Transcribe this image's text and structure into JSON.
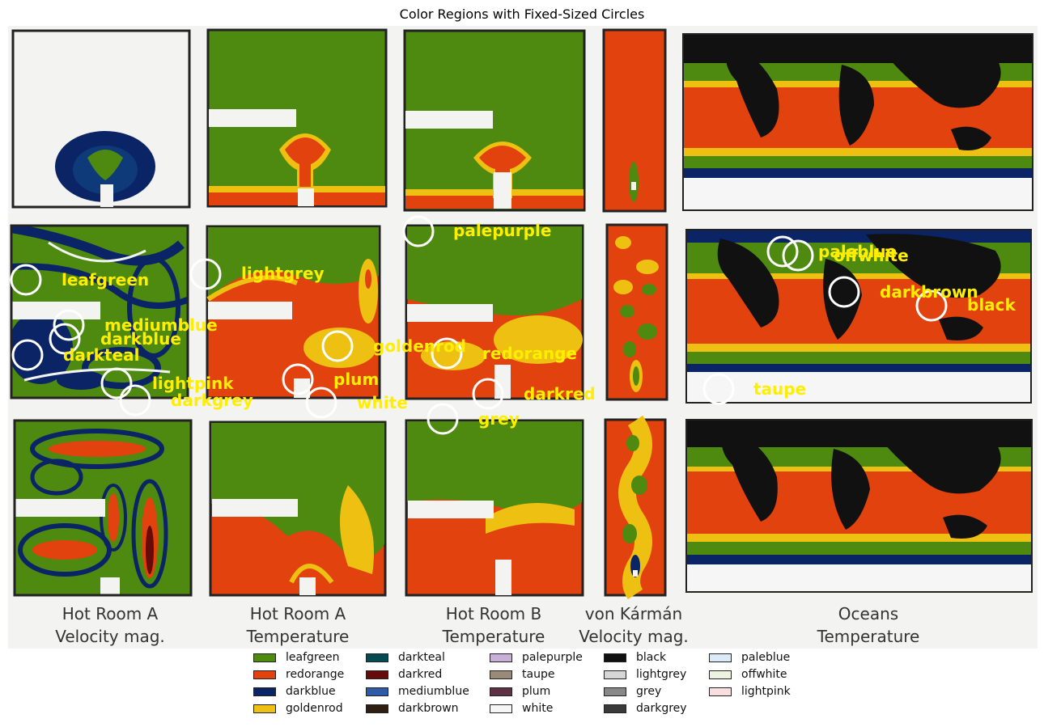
{
  "title": "Color Regions with Fixed-Sized Circles",
  "captions": [
    [
      "Hot Room A",
      "Velocity mag."
    ],
    [
      "Hot Room A",
      "Temperature"
    ],
    [
      "Hot Room B",
      "Temperature"
    ],
    [
      "von Kármán",
      "Velocity mag."
    ],
    [
      "Oceans",
      "Temperature"
    ]
  ],
  "annotations": [
    "leafgreen",
    "mediumblue",
    "darkblue",
    "darkteal",
    "lightpink",
    "darkgrey",
    "lightgrey",
    "goldenrod",
    "plum",
    "white",
    "palepurple",
    "redorange",
    "darkred",
    "grey",
    "paleblue",
    "offwhite",
    "darkbrown",
    "black",
    "taupe"
  ],
  "legend": [
    {
      "label": "leafgreen",
      "color": "#4e8a0f"
    },
    {
      "label": "redorange",
      "color": "#e2420e"
    },
    {
      "label": "darkblue",
      "color": "#0a2466"
    },
    {
      "label": "goldenrod",
      "color": "#eec011"
    },
    {
      "label": "darkteal",
      "color": "#034b50"
    },
    {
      "label": "darkred",
      "color": "#660a0a"
    },
    {
      "label": "mediumblue",
      "color": "#2e5aa8"
    },
    {
      "label": "darkbrown",
      "color": "#2e1f12"
    },
    {
      "label": "palepurple",
      "color": "#c8b0d8"
    },
    {
      "label": "taupe",
      "color": "#9a8a78"
    },
    {
      "label": "plum",
      "color": "#5e3044"
    },
    {
      "label": "white",
      "color": "#f6f6f6"
    },
    {
      "label": "black",
      "color": "#111111"
    },
    {
      "label": "lightgrey",
      "color": "#d6d6d6"
    },
    {
      "label": "grey",
      "color": "#888888"
    },
    {
      "label": "darkgrey",
      "color": "#3a3a3a"
    },
    {
      "label": "paleblue",
      "color": "#dbeaf8"
    },
    {
      "label": "offwhite",
      "color": "#eef2e0"
    },
    {
      "label": "lightpink",
      "color": "#f8dede"
    }
  ],
  "colors": {
    "background": "#f3f3f2",
    "frame": "#222222",
    "label": "#ffee00",
    "circle": "#ffffff"
  }
}
